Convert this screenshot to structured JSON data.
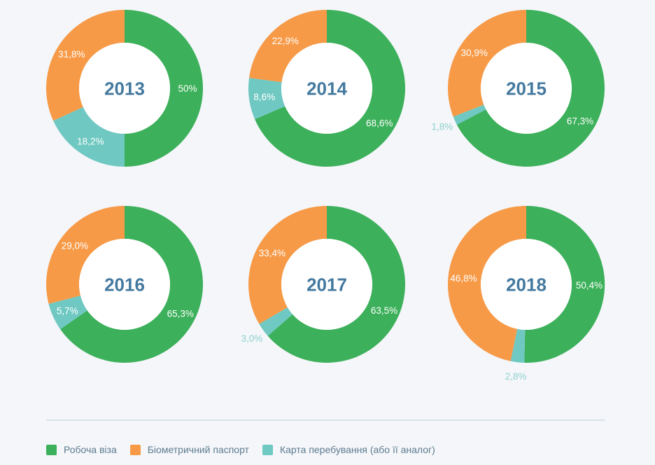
{
  "page": {
    "background": "#f4f6fa"
  },
  "palette": {
    "work_visa": "#3cb05a",
    "biometric_passport": "#f79a47",
    "residence_card": "#6fc8c2",
    "slice_label": "#ffffff",
    "outside_label": "#8ed1cd",
    "year_text": "#44799f",
    "legend_text": "#5d7b8e",
    "divider": "#dbe2e8",
    "donut_hole": "#ffffff"
  },
  "legend": {
    "items": [
      {
        "id": "work_visa",
        "label": "Робоча віза"
      },
      {
        "id": "biometric_passport",
        "label": "Біометричний паспорт"
      },
      {
        "id": "residence_card",
        "label": "Карта перебування (або її аналог)"
      }
    ]
  },
  "chart_data": {
    "type": "pie",
    "variant": "donut",
    "unit": "%",
    "legend_position": "bottom",
    "series_names": [
      "Робоча віза",
      "Біометричний паспорт",
      "Карта перебування (або її аналог)"
    ],
    "charts": [
      {
        "year": "2013",
        "values": {
          "work_visa": 50.0,
          "biometric_passport": 31.8,
          "residence_card": 18.2
        },
        "labels": {
          "work_visa": "50%",
          "biometric_passport": "31,8%",
          "residence_card": "18,2%"
        },
        "outside_labels": []
      },
      {
        "year": "2014",
        "values": {
          "work_visa": 68.6,
          "biometric_passport": 22.9,
          "residence_card": 8.6
        },
        "labels": {
          "work_visa": "68,6%",
          "biometric_passport": "22,9%",
          "residence_card": "8,6%"
        },
        "outside_labels": []
      },
      {
        "year": "2015",
        "values": {
          "work_visa": 67.3,
          "biometric_passport": 30.9,
          "residence_card": 1.8
        },
        "labels": {
          "work_visa": "67,3%",
          "biometric_passport": "30,9%",
          "residence_card": "1,8%"
        },
        "outside_labels": [
          "residence_card"
        ]
      },
      {
        "year": "2016",
        "values": {
          "work_visa": 65.3,
          "biometric_passport": 29.0,
          "residence_card": 5.7
        },
        "labels": {
          "work_visa": "65,3%",
          "biometric_passport": "29,0%",
          "residence_card": "5,7%"
        },
        "outside_labels": []
      },
      {
        "year": "2017",
        "values": {
          "work_visa": 63.5,
          "biometric_passport": 33.4,
          "residence_card": 3.0
        },
        "labels": {
          "work_visa": "63,5%",
          "biometric_passport": "33,4%",
          "residence_card": "3,0%"
        },
        "outside_labels": [
          "residence_card"
        ]
      },
      {
        "year": "2018",
        "values": {
          "work_visa": 50.4,
          "biometric_passport": 46.8,
          "residence_card": 2.8
        },
        "labels": {
          "work_visa": "50,4%",
          "biometric_passport": "46,8%",
          "residence_card": "2,8%"
        },
        "outside_labels": [
          "residence_card"
        ]
      }
    ]
  },
  "layout_hints": {
    "slice_order": [
      "work_visa",
      "residence_card",
      "biometric_passport"
    ],
    "start_angle_deg": 0,
    "clockwise": true,
    "grid": "3x2"
  }
}
